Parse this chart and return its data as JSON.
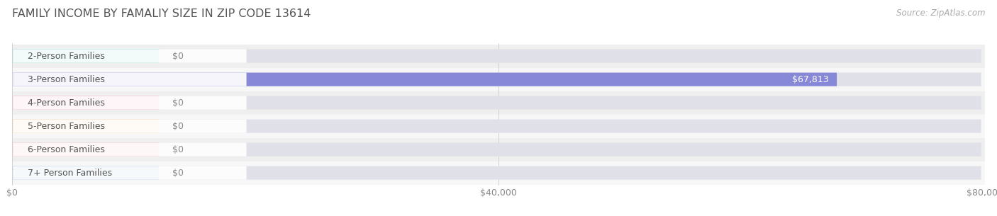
{
  "title": "FAMILY INCOME BY FAMALIY SIZE IN ZIP CODE 13614",
  "source": "Source: ZipAtlas.com",
  "categories": [
    "2-Person Families",
    "3-Person Families",
    "4-Person Families",
    "5-Person Families",
    "6-Person Families",
    "7+ Person Families"
  ],
  "values": [
    0,
    67813,
    0,
    0,
    0,
    0
  ],
  "bar_colors": [
    "#6ecec4",
    "#8888d8",
    "#f090a0",
    "#f5c88a",
    "#f0a0a0",
    "#90b8e0"
  ],
  "xlim": [
    0,
    80000
  ],
  "xticks": [
    0,
    40000,
    80000
  ],
  "xtick_labels": [
    "$0",
    "$40,000",
    "$80,000"
  ],
  "bar_height": 0.58,
  "zero_bar_width": 12000,
  "background_color": "#ffffff",
  "row_bg_odd": "#efefef",
  "row_bg_even": "#f7f7f7",
  "pill_bg_color": "#e0e0e8",
  "value_label_color": "#ffffff",
  "zero_label_color": "#888888",
  "title_color": "#555555",
  "title_fontsize": 11.5,
  "source_fontsize": 8.5,
  "tick_fontsize": 9,
  "cat_fontsize": 9,
  "cat_text_color": "#555555",
  "grid_color": "#cccccc"
}
